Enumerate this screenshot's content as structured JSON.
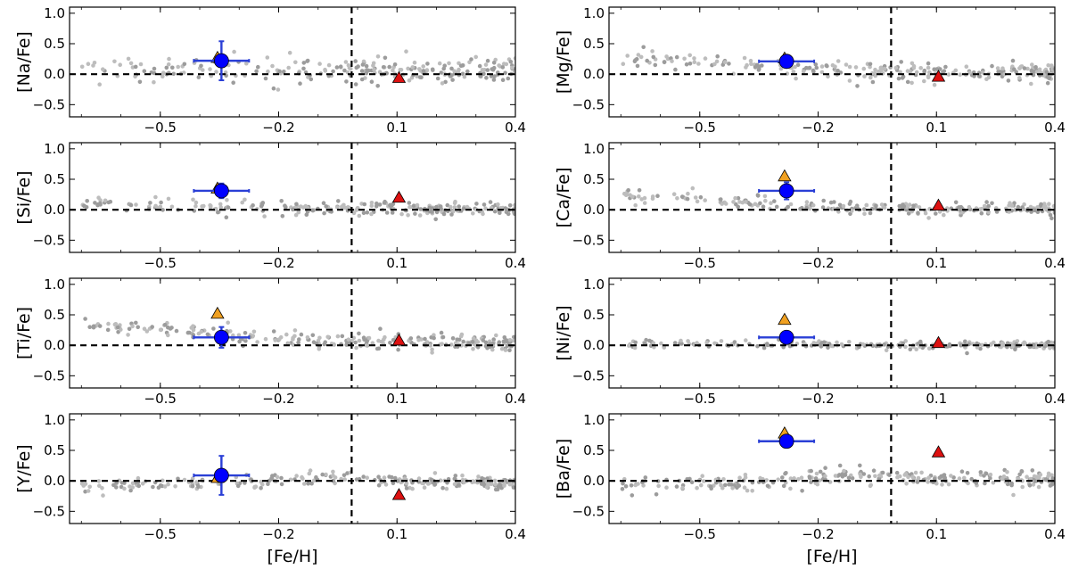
{
  "figure": {
    "x_axis_label": "[Fe/H]"
  },
  "style": {
    "field_star_color": "#a9a9a9",
    "circle_color": "#0000ff",
    "errorbar_color": "#2a3fd6",
    "triangle_orange": "#f0a020",
    "triangle_red": "#dd1111",
    "reference_line_color": "#000000"
  },
  "chart_data": [
    {
      "type": "scatter",
      "ylabel": "[Na/Fe]",
      "xlim": [
        -0.73,
        0.4
      ],
      "ylim": [
        -0.7,
        1.1
      ],
      "xticks": [
        -0.5,
        -0.2,
        0.1,
        0.4
      ],
      "xtick_labels": [
        "−0.5",
        "−0.2",
        "0.1",
        "0.4"
      ],
      "yticks": [
        1.0,
        0.5,
        0.0,
        -0.5
      ],
      "ytick_labels": [
        "1.0",
        "0.5",
        "0.0",
        "−0.5"
      ],
      "vline_x": -0.015,
      "hline_y": 0.0,
      "field_stars": {
        "trend": "flat",
        "base": 0.05,
        "low_feh_extra": 0.05,
        "scatter": 0.13,
        "n": 240,
        "seed": 11
      },
      "cluster_mean": {
        "x": -0.345,
        "y": 0.22,
        "xerr": 0.07,
        "yerr": 0.32
      },
      "orange_triangle": {
        "x": -0.355,
        "y": 0.27
      },
      "red_triangle": {
        "x": 0.105,
        "y": -0.06
      }
    },
    {
      "type": "scatter",
      "ylabel": "[Mg/Fe]",
      "xlim": [
        -0.73,
        0.4
      ],
      "ylim": [
        -0.7,
        1.1
      ],
      "xticks": [
        -0.5,
        -0.2,
        0.1,
        0.4
      ],
      "xtick_labels": [
        "−0.5",
        "−0.2",
        "0.1",
        "0.4"
      ],
      "yticks": [
        1.0,
        0.5,
        0.0,
        -0.5
      ],
      "ytick_labels": [
        "1.0",
        "0.5",
        "0.0",
        "−0.5"
      ],
      "vline_x": -0.015,
      "hline_y": 0.0,
      "field_stars": {
        "trend": "decreasing",
        "base": 0.03,
        "low_feh_extra": 0.25,
        "scatter": 0.09,
        "n": 240,
        "seed": 23
      },
      "cluster_mean": {
        "x": -0.28,
        "y": 0.21,
        "xerr": 0.07,
        "yerr": 0.03
      },
      "orange_triangle": {
        "x": -0.285,
        "y": 0.26
      },
      "red_triangle": {
        "x": 0.105,
        "y": -0.04
      }
    },
    {
      "type": "scatter",
      "ylabel": "[Si/Fe]",
      "xlim": [
        -0.73,
        0.4
      ],
      "ylim": [
        -0.7,
        1.1
      ],
      "xticks": [
        -0.5,
        -0.2,
        0.1,
        0.4
      ],
      "xtick_labels": [
        "−0.5",
        "−0.2",
        "0.1",
        "0.4"
      ],
      "yticks": [
        1.0,
        0.5,
        0.0,
        -0.5
      ],
      "ytick_labels": [
        "1.0",
        "0.5",
        "0.0",
        "−0.5"
      ],
      "vline_x": -0.015,
      "hline_y": 0.0,
      "field_stars": {
        "trend": "decreasing",
        "base": 0.01,
        "low_feh_extra": 0.1,
        "scatter": 0.07,
        "n": 240,
        "seed": 37
      },
      "cluster_mean": {
        "x": -0.345,
        "y": 0.31,
        "xerr": 0.07,
        "yerr": 0.12
      },
      "orange_triangle": {
        "x": -0.355,
        "y": 0.35
      },
      "red_triangle": {
        "x": 0.105,
        "y": 0.2
      }
    },
    {
      "type": "scatter",
      "ylabel": "[Ca/Fe]",
      "xlim": [
        -0.73,
        0.4
      ],
      "ylim": [
        -0.7,
        1.1
      ],
      "xticks": [
        -0.5,
        -0.2,
        0.1,
        0.4
      ],
      "xtick_labels": [
        "−0.5",
        "−0.2",
        "0.1",
        "0.4"
      ],
      "yticks": [
        1.0,
        0.5,
        0.0,
        -0.5
      ],
      "ytick_labels": [
        "1.0",
        "0.5",
        "0.0",
        "−0.5"
      ],
      "vline_x": -0.015,
      "hline_y": 0.0,
      "field_stars": {
        "trend": "decreasing",
        "base": 0.02,
        "low_feh_extra": 0.22,
        "scatter": 0.07,
        "n": 240,
        "seed": 41
      },
      "cluster_mean": {
        "x": -0.28,
        "y": 0.31,
        "xerr": 0.07,
        "yerr": 0.14
      },
      "orange_triangle": {
        "x": -0.285,
        "y": 0.55
      },
      "red_triangle": {
        "x": 0.105,
        "y": 0.07
      }
    },
    {
      "type": "scatter",
      "ylabel": "[Ti/Fe]",
      "xlim": [
        -0.73,
        0.4
      ],
      "ylim": [
        -0.7,
        1.1
      ],
      "xticks": [
        -0.5,
        -0.2,
        0.1,
        0.4
      ],
      "xtick_labels": [
        "−0.5",
        "−0.2",
        "0.1",
        "0.4"
      ],
      "yticks": [
        1.0,
        0.5,
        0.0,
        -0.5
      ],
      "ytick_labels": [
        "1.0",
        "0.5",
        "0.0",
        "−0.5"
      ],
      "vline_x": -0.015,
      "hline_y": 0.0,
      "field_stars": {
        "trend": "decreasing",
        "base": 0.06,
        "low_feh_extra": 0.3,
        "scatter": 0.09,
        "n": 260,
        "seed": 53
      },
      "cluster_mean": {
        "x": -0.345,
        "y": 0.13,
        "xerr": 0.07,
        "yerr": 0.17
      },
      "orange_triangle": {
        "x": -0.355,
        "y": 0.52
      },
      "red_triangle": {
        "x": 0.105,
        "y": 0.08
      }
    },
    {
      "type": "scatter",
      "ylabel": "[Ni/Fe]",
      "xlim": [
        -0.73,
        0.4
      ],
      "ylim": [
        -0.7,
        1.1
      ],
      "xticks": [
        -0.5,
        -0.2,
        0.1,
        0.4
      ],
      "xtick_labels": [
        "−0.5",
        "−0.2",
        "0.1",
        "0.4"
      ],
      "yticks": [
        1.0,
        0.5,
        0.0,
        -0.5
      ],
      "ytick_labels": [
        "1.0",
        "0.5",
        "0.0",
        "−0.5"
      ],
      "vline_x": -0.015,
      "hline_y": 0.0,
      "field_stars": {
        "trend": "flat",
        "base": 0.0,
        "low_feh_extra": 0.02,
        "scatter": 0.04,
        "n": 240,
        "seed": 67
      },
      "cluster_mean": {
        "x": -0.28,
        "y": 0.13,
        "xerr": 0.07,
        "yerr": 0.1
      },
      "orange_triangle": {
        "x": -0.285,
        "y": 0.42
      },
      "red_triangle": {
        "x": 0.105,
        "y": 0.04
      }
    },
    {
      "type": "scatter",
      "ylabel": "[Y/Fe]",
      "xlim": [
        -0.73,
        0.4
      ],
      "ylim": [
        -0.7,
        1.1
      ],
      "xticks": [
        -0.5,
        -0.2,
        0.1,
        0.4
      ],
      "xtick_labels": [
        "−0.5",
        "−0.2",
        "0.1",
        "0.4"
      ],
      "yticks": [
        1.0,
        0.5,
        0.0,
        -0.5
      ],
      "ytick_labels": [
        "1.0",
        "0.5",
        "0.0",
        "−0.5"
      ],
      "vline_x": -0.015,
      "hline_y": 0.0,
      "field_stars": {
        "trend": "hump",
        "base": -0.02,
        "low_feh_extra": -0.05,
        "scatter": 0.07,
        "n": 240,
        "seed": 79
      },
      "cluster_mean": {
        "x": -0.345,
        "y": 0.09,
        "xerr": 0.07,
        "yerr": 0.32
      },
      "orange_triangle": {
        "x": -0.355,
        "y": 0.05
      },
      "red_triangle": {
        "x": 0.105,
        "y": -0.23
      }
    },
    {
      "type": "scatter",
      "ylabel": "[Ba/Fe]",
      "xlim": [
        -0.73,
        0.4
      ],
      "ylim": [
        -0.7,
        1.1
      ],
      "xticks": [
        -0.5,
        -0.2,
        0.1,
        0.4
      ],
      "xtick_labels": [
        "−0.5",
        "−0.2",
        "0.1",
        "0.4"
      ],
      "yticks": [
        1.0,
        0.5,
        0.0,
        -0.5
      ],
      "ytick_labels": [
        "1.0",
        "0.5",
        "0.0",
        "−0.5"
      ],
      "vline_x": -0.015,
      "hline_y": 0.0,
      "field_stars": {
        "trend": "hump",
        "base": 0.02,
        "low_feh_extra": -0.1,
        "scatter": 0.09,
        "n": 260,
        "seed": 97
      },
      "cluster_mean": {
        "x": -0.28,
        "y": 0.65,
        "xerr": 0.07,
        "yerr": 0.05
      },
      "orange_triangle": {
        "x": -0.285,
        "y": 0.78
      },
      "red_triangle": {
        "x": 0.105,
        "y": 0.47
      }
    }
  ]
}
